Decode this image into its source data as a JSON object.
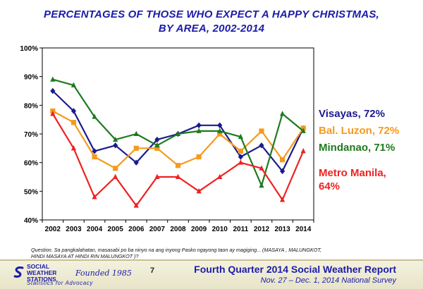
{
  "header": {
    "title_line1": "PERCENTAGES OF THOSE WHO EXPECT A HAPPY CHRISTMAS,",
    "title_line2": "BY AREA, 2002-2014"
  },
  "chart_data": {
    "type": "line",
    "title": "PERCENTAGES OF THOSE WHO EXPECT A HAPPY CHRISTMAS, BY AREA, 2002-2014",
    "xlabel": "",
    "ylabel": "",
    "x": [
      "2002",
      "2003",
      "2004",
      "2005",
      "2006",
      "2007",
      "2008",
      "2009",
      "2010",
      "2011",
      "2012",
      "2013",
      "2014"
    ],
    "ylim": [
      40,
      100
    ],
    "y_ticks": [
      "40%",
      "50%",
      "60%",
      "70%",
      "80%",
      "90%",
      "100%"
    ],
    "grid": false,
    "series": [
      {
        "name": "Visayas",
        "color": "#1b1b8e",
        "marker": "diamond",
        "values": [
          85,
          78,
          64,
          66,
          60,
          68,
          70,
          73,
          73,
          62,
          66,
          57,
          72
        ]
      },
      {
        "name": "Bal. Luzon",
        "color": "#f59a1e",
        "marker": "square",
        "values": [
          78,
          74,
          62,
          58,
          65,
          65,
          59,
          62,
          70,
          64,
          71,
          61,
          72
        ]
      },
      {
        "name": "Mindanao",
        "color": "#1f7a1f",
        "marker": "triangle",
        "values": [
          89,
          87,
          76,
          68,
          70,
          66,
          70,
          71,
          71,
          69,
          52,
          77,
          71
        ]
      },
      {
        "name": "Metro Manila",
        "color": "#ee2222",
        "marker": "triangle",
        "values": [
          77,
          65,
          48,
          55,
          45,
          55,
          55,
          50,
          55,
          60,
          58,
          47,
          64
        ]
      }
    ]
  },
  "legend": {
    "visayas": "Visayas, 72%",
    "bal_luzon": "Bal. Luzon, 72%",
    "mindanao": "Mindanao, 71%",
    "metro_manila_line1": "Metro Manila,",
    "metro_manila_line2": "64%"
  },
  "question": {
    "line1": "Question. Sa pangkalahatan, masasabi po ba ninyo na ang inyong Pasko ngayong taon ay magiging... (MASAYA , MALUNGKOT,",
    "line2": "HINDI MASAYA AT HINDI RIN MALUNGKOT )?"
  },
  "footer": {
    "logo_line1": "SOCIAL",
    "logo_line2": "WEATHER",
    "logo_line3": "STATIONS",
    "founded": "Founded 1985",
    "tagline": "Statistics for Advocacy",
    "page_number": "7",
    "report_title": "Fourth Quarter 2014 Social Weather Report",
    "report_date": "Nov. 27 – Dec. 1, 2014 National Survey"
  }
}
